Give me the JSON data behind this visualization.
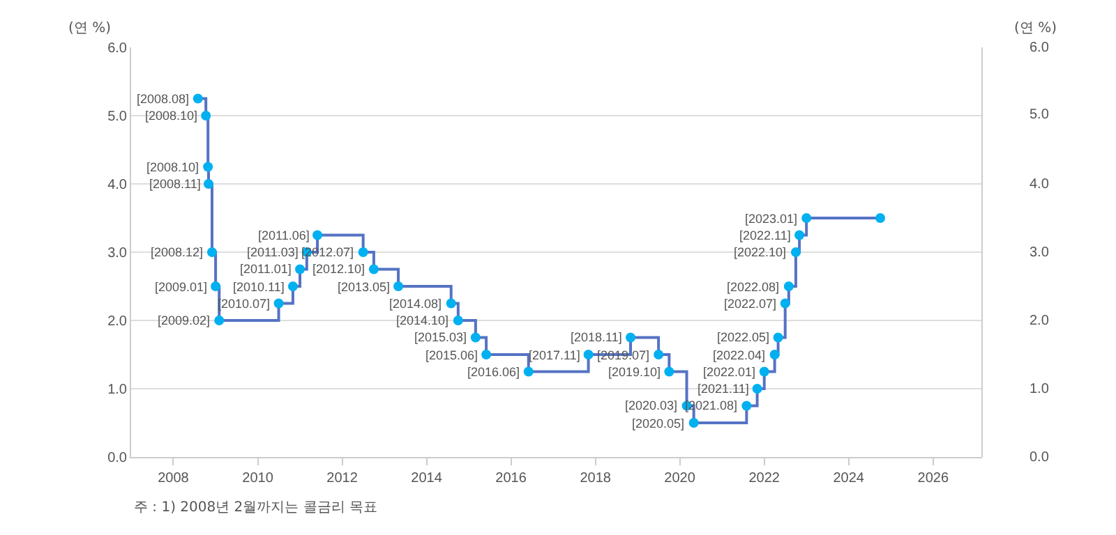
{
  "chart_data": {
    "type": "step",
    "ylabel": "(연 %)",
    "y2label": "(연 %)",
    "x": [
      "2008-08",
      "2008-10-09",
      "2008-10-27",
      "2008-11",
      "2008-12",
      "2009-01",
      "2009-02",
      "2010-07",
      "2010-11",
      "2011-01",
      "2011-03",
      "2011-06",
      "2012-07",
      "2012-10",
      "2013-05",
      "2014-08",
      "2014-10",
      "2015-03",
      "2015-06",
      "2016-06",
      "2017-11",
      "2018-11",
      "2019-07",
      "2019-10",
      "2020-03",
      "2020-05",
      "2021-08",
      "2021-11",
      "2022-01",
      "2022-04",
      "2022-05",
      "2022-07",
      "2022-08",
      "2022-10",
      "2022-11",
      "2023-01",
      "2024-10"
    ],
    "series": [
      {
        "color": "#5573c4",
        "colors": [
          "#00b0f0",
          "#00b0f0",
          "#00b0f0",
          "#00b0f0",
          "#00b0f0",
          "#00b0f0",
          "#00b0f0",
          "#00b0f0",
          "#00b0f0",
          "#00b0f0",
          "#00b0f0",
          "#00b0f0",
          "#00b0f0",
          "#00b0f0",
          "#00b0f0",
          "#00b0f0",
          "#00b0f0",
          "#00b0f0",
          "#00b0f0",
          "#00b0f0",
          "#00b0f0",
          "#00b0f0",
          "#00b0f0",
          "#00b0f0",
          "#00b0f0",
          "#00b0f0",
          "#00b0f0",
          "#00b0f0",
          "#00b0f0",
          "#00b0f0",
          "#00b0f0",
          "#00b0f0",
          "#00b0f0",
          "#00b0f0",
          "#00b0f0",
          "#00b0f0",
          "#00b0f0"
        ],
        "values": [
          5.25,
          5.0,
          4.25,
          4.0,
          3.0,
          2.5,
          2.0,
          2.25,
          2.5,
          2.75,
          3.0,
          3.25,
          3.0,
          2.75,
          2.5,
          2.25,
          2.0,
          1.75,
          1.5,
          1.25,
          1.5,
          1.75,
          1.5,
          1.25,
          0.75,
          0.5,
          0.75,
          1.0,
          1.25,
          1.5,
          1.75,
          2.25,
          2.5,
          3.0,
          3.25,
          3.5,
          3.5
        ]
      }
    ],
    "xlim": [
      "2007-01",
      "2027-03"
    ],
    "xticks": [
      "2008",
      "2010",
      "2012",
      "2014",
      "2016",
      "2018",
      "2020",
      "2022",
      "2024",
      "2026"
    ],
    "ylim": [
      0,
      6
    ],
    "yticks": [
      {
        "value": 0,
        "label": "0.0"
      },
      {
        "value": 1,
        "label": "1.0"
      },
      {
        "value": 2,
        "label": "2.0"
      },
      {
        "value": 3,
        "label": "3.0"
      },
      {
        "value": 4,
        "label": "4.0"
      },
      {
        "value": 5,
        "label": "5.0"
      },
      {
        "value": 6,
        "label": "6.0"
      }
    ],
    "y2lim": [
      0,
      6
    ],
    "y2ticks": [
      {
        "value": 0,
        "label": "0.0"
      },
      {
        "value": 1,
        "label": "1.0"
      },
      {
        "value": 2,
        "label": "2.0"
      },
      {
        "value": 3,
        "label": "3.0"
      },
      {
        "value": 4,
        "label": "4.0"
      },
      {
        "value": 5,
        "label": "5.0"
      },
      {
        "value": 6,
        "label": "6.0"
      }
    ],
    "grid": "y",
    "marker": "circle",
    "line_style": "solid",
    "annotations": [
      {
        "text": "[2008.08]",
        "x": "2008-08",
        "y": 5.25
      },
      {
        "text": "[2008.10]",
        "x": "2008-10-09",
        "y": 5.0
      },
      {
        "text": "[2008.10]",
        "x": "2008-10-27",
        "y": 4.25
      },
      {
        "text": "[2008.11]",
        "x": "2008-11",
        "y": 4.0
      },
      {
        "text": "[2008.12]",
        "x": "2008-12",
        "y": 3.0
      },
      {
        "text": "[2009.01]",
        "x": "2009-01",
        "y": 2.5
      },
      {
        "text": "[2009.02]",
        "x": "2009-02",
        "y": 2.0
      },
      {
        "text": "[2010.07]",
        "x": "2010-07",
        "y": 2.25
      },
      {
        "text": "[2010.11]",
        "x": "2010-11",
        "y": 2.5
      },
      {
        "text": "[2011.01]",
        "x": "2011-01",
        "y": 2.75
      },
      {
        "text": "[2011.03]",
        "x": "2011-03",
        "y": 3.0
      },
      {
        "text": "[2011.06]",
        "x": "2011-06",
        "y": 3.25
      },
      {
        "text": "[2012.07]",
        "x": "2012-07",
        "y": 3.0
      },
      {
        "text": "[2012.10]",
        "x": "2012-10",
        "y": 2.75
      },
      {
        "text": "[2013.05]",
        "x": "2013-05",
        "y": 2.5
      },
      {
        "text": "[2014.08]",
        "x": "2014-08",
        "y": 2.25
      },
      {
        "text": "[2014.10]",
        "x": "2014-10",
        "y": 2.0
      },
      {
        "text": "[2015.03]",
        "x": "2015-03",
        "y": 1.75
      },
      {
        "text": "[2015.06]",
        "x": "2015-06",
        "y": 1.5
      },
      {
        "text": "[2016.06]",
        "x": "2016-06",
        "y": 1.25
      },
      {
        "text": "[2017.11]",
        "x": "2017-11",
        "y": 1.5
      },
      {
        "text": "[2018.11]",
        "x": "2018-11",
        "y": 1.75
      },
      {
        "text": "[2019.07]",
        "x": "2019-07",
        "y": 1.5
      },
      {
        "text": "[2019.10]",
        "x": "2019-10",
        "y": 1.25
      },
      {
        "text": "[2020.03]",
        "x": "2020-03",
        "y": 0.75
      },
      {
        "text": "[2020.05]",
        "x": "2020-05",
        "y": 0.5
      },
      {
        "text": "[2021.08]",
        "x": "2021-08",
        "y": 0.75
      },
      {
        "text": "[2021.11]",
        "x": "2021-11",
        "y": 1.0
      },
      {
        "text": "[2022.01]",
        "x": "2022-01",
        "y": 1.25
      },
      {
        "text": "[2022.04]",
        "x": "2022-04",
        "y": 1.5
      },
      {
        "text": "[2022.05]",
        "x": "2022-05",
        "y": 1.75
      },
      {
        "text": "[2022.07]",
        "x": "2022-07",
        "y": 2.25
      },
      {
        "text": "[2022.08]",
        "x": "2022-08",
        "y": 2.5
      },
      {
        "text": "[2022.10]",
        "x": "2022-10",
        "y": 3.0
      },
      {
        "text": "[2022.11]",
        "x": "2022-11",
        "y": 3.25
      },
      {
        "text": "[2023.01]",
        "x": "2023-01",
        "y": 3.5
      },
      "주 : 1) 2008년 2월까지는 콜금리 목표"
    ]
  }
}
